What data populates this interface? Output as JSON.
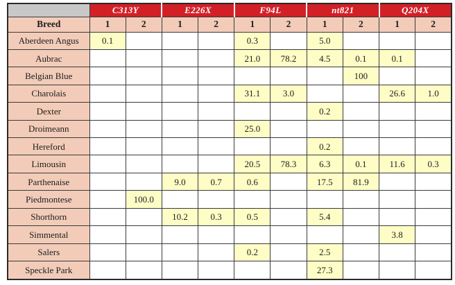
{
  "chart_data": {
    "type": "table",
    "corner_label": "",
    "row_header_label": "Breed",
    "column_groups": [
      {
        "label": "C313Y",
        "sub_columns": [
          "1",
          "2"
        ]
      },
      {
        "label": "E226X",
        "sub_columns": [
          "1",
          "2"
        ]
      },
      {
        "label": "F94L",
        "sub_columns": [
          "1",
          "2"
        ]
      },
      {
        "label": "nt821",
        "sub_columns": [
          "1",
          "2"
        ]
      },
      {
        "label": "Q204X",
        "sub_columns": [
          "1",
          "2"
        ]
      }
    ],
    "rows": [
      {
        "breed": "Aberdeen Angus",
        "values": [
          "0.1",
          "",
          "",
          "",
          "0.3",
          "",
          "5.0",
          "",
          "",
          ""
        ]
      },
      {
        "breed": "Aubrac",
        "values": [
          "",
          "",
          "",
          "",
          "21.0",
          "78.2",
          "4.5",
          "0.1",
          "0.1",
          ""
        ]
      },
      {
        "breed": "Belgian Blue",
        "values": [
          "",
          "",
          "",
          "",
          "",
          "",
          "",
          "100",
          "",
          ""
        ]
      },
      {
        "breed": "Charolais",
        "values": [
          "",
          "",
          "",
          "",
          "31.1",
          "3.0",
          "",
          "",
          "26.6",
          "1.0"
        ]
      },
      {
        "breed": "Dexter",
        "values": [
          "",
          "",
          "",
          "",
          "",
          "",
          "0.2",
          "",
          "",
          ""
        ]
      },
      {
        "breed": "Droimeann",
        "values": [
          "",
          "",
          "",
          "",
          "25.0",
          "",
          "",
          "",
          "",
          ""
        ]
      },
      {
        "breed": "Hereford",
        "values": [
          "",
          "",
          "",
          "",
          "",
          "",
          "0.2",
          "",
          "",
          ""
        ]
      },
      {
        "breed": "Limousin",
        "values": [
          "",
          "",
          "",
          "",
          "20.5",
          "78.3",
          "6.3",
          "0.1",
          "11.6",
          "0.3"
        ]
      },
      {
        "breed": "Parthenaise",
        "values": [
          "",
          "",
          "9.0",
          "0.7",
          "0.6",
          "",
          "17.5",
          "81.9",
          "",
          ""
        ]
      },
      {
        "breed": "Piedmontese",
        "values": [
          "",
          "100.0",
          "",
          "",
          "",
          "",
          "",
          "",
          "",
          ""
        ]
      },
      {
        "breed": "Shorthorn",
        "values": [
          "",
          "",
          "10.2",
          "0.3",
          "0.5",
          "",
          "5.4",
          "",
          "",
          ""
        ]
      },
      {
        "breed": "Simmental",
        "values": [
          "",
          "",
          "",
          "",
          "",
          "",
          "",
          "",
          "3.8",
          ""
        ]
      },
      {
        "breed": "Salers",
        "values": [
          "",
          "",
          "",
          "",
          "0.2",
          "",
          "2.5",
          "",
          "",
          ""
        ]
      },
      {
        "breed": "Speckle Park",
        "values": [
          "",
          "",
          "",
          "",
          "",
          "",
          "27.3",
          "",
          "",
          ""
        ]
      }
    ]
  },
  "colors": {
    "group_header_bg": "#d22027",
    "group_header_text": "#ffffff",
    "corner_bg": "#c8c8c8",
    "header_pink_bg": "#f2ccb9",
    "breed_col_bg": "#f2ccb9",
    "filled_cell_bg": "#fffdc6",
    "empty_cell_bg": "#ffffff",
    "grid_border": "#3a3a3a",
    "text": "#1d1d1d"
  }
}
